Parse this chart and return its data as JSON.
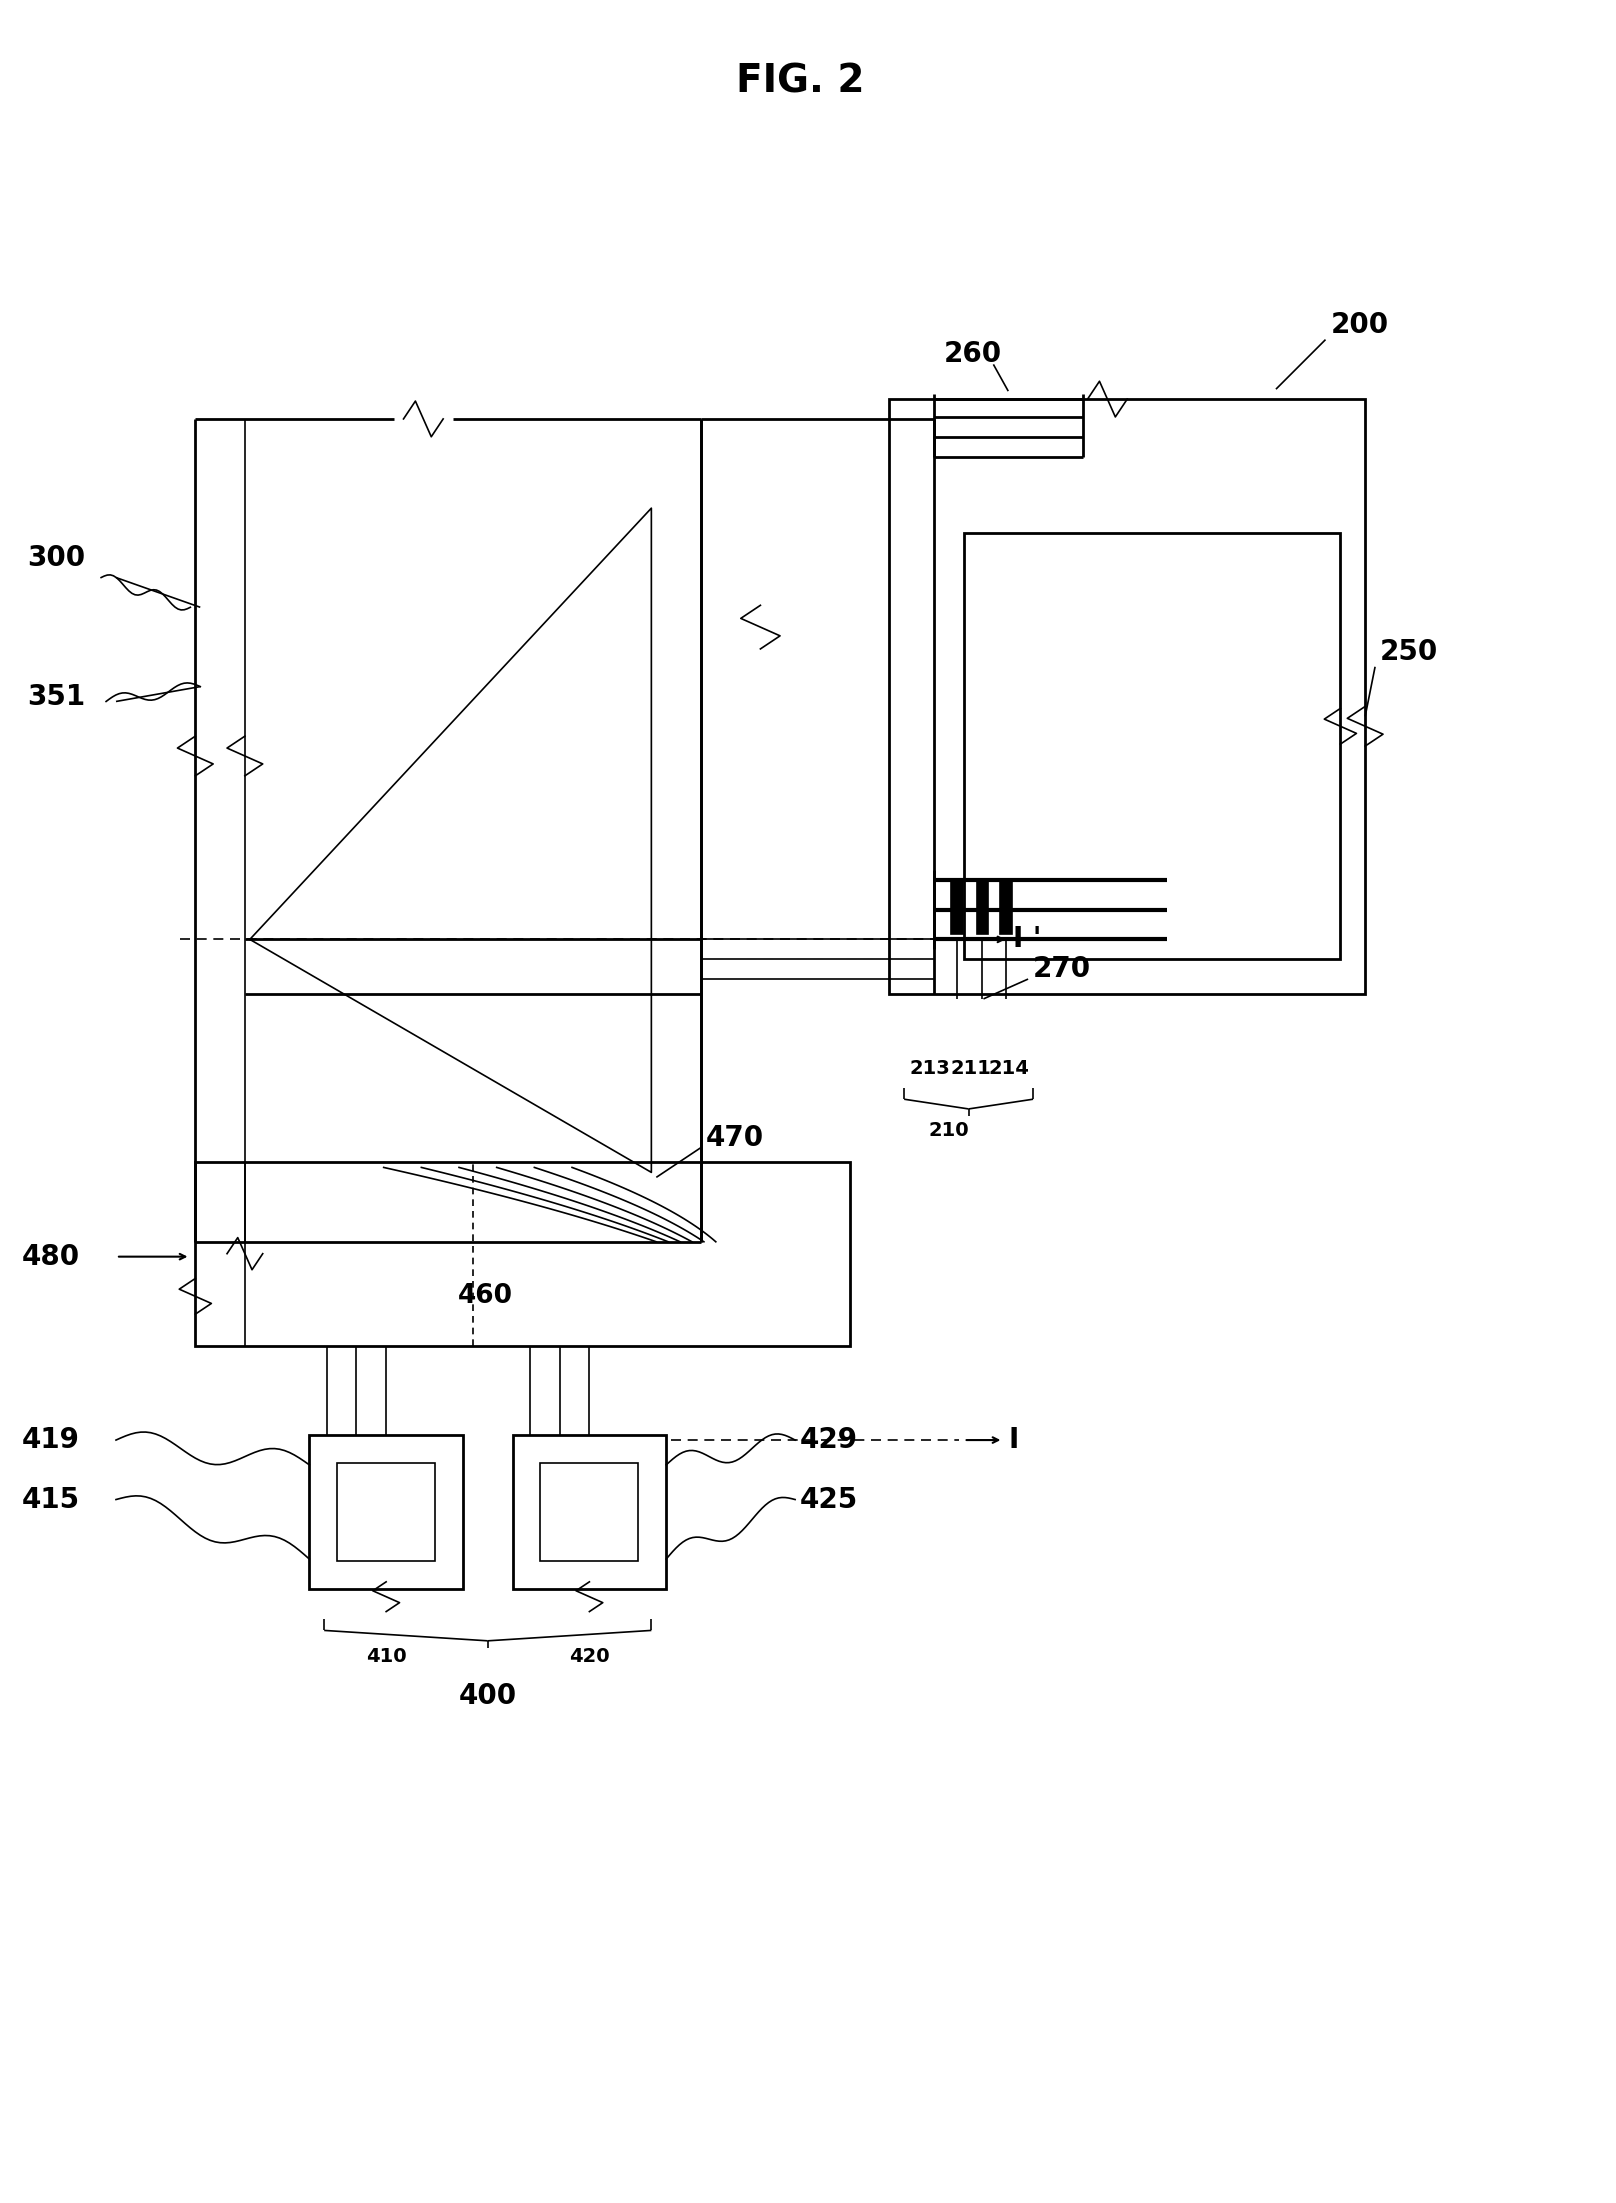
{
  "title": "FIG. 2",
  "bg_color": "#ffffff",
  "line_color": "#000000",
  "title_fontsize": 28,
  "label_fontsize": 20,
  "fig_width": 16.16,
  "fig_height": 22.03
}
